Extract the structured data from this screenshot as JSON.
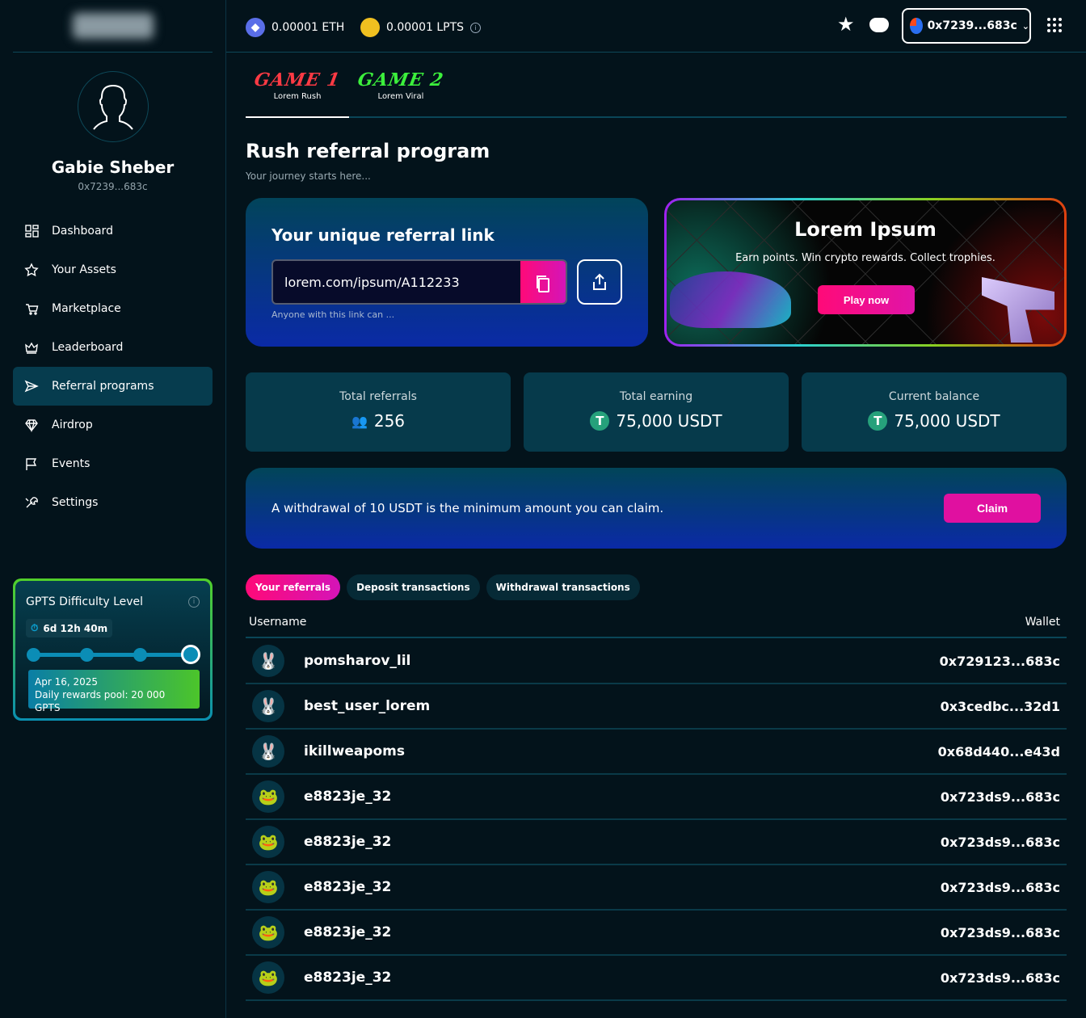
{
  "sidebar": {
    "user": {
      "name": "Gabie Sheber",
      "address": "0x7239...683c"
    },
    "items": [
      {
        "label": "Dashboard",
        "icon": "dashboard-icon"
      },
      {
        "label": "Your Assets",
        "icon": "star-icon"
      },
      {
        "label": "Marketplace",
        "icon": "cart-icon"
      },
      {
        "label": "Leaderboard",
        "icon": "crown-icon"
      },
      {
        "label": "Referral programs",
        "icon": "send-icon",
        "active": true
      },
      {
        "label": "Airdrop",
        "icon": "diamond-icon"
      },
      {
        "label": "Events",
        "icon": "flag-icon"
      },
      {
        "label": "Settings",
        "icon": "tools-icon"
      }
    ],
    "gpts": {
      "title": "GPTS Difficulty Level",
      "timer": "6d 12h 40m",
      "level": 4,
      "levels": 4,
      "date": "Apr 16, 2025",
      "pool": "Daily rewards pool: 20 000 GPTS"
    }
  },
  "topbar": {
    "eth": "0.00001 ETH",
    "lpts": "0.00001 LPTS",
    "wallet": "0x7239...683c"
  },
  "tabs": [
    {
      "title": "GAME 1",
      "subtitle": "Lorem Rush",
      "color": "#ff3a44"
    },
    {
      "title": "GAME 2",
      "subtitle": "Lorem Viral",
      "color": "#3cf03c"
    }
  ],
  "page": {
    "title": "Rush referral program",
    "subtitle": "Your journey starts here..."
  },
  "referral": {
    "title": "Your unique referral link",
    "link": "lorem.com/ipsum/A112233",
    "note": "Anyone with this link can ..."
  },
  "promo": {
    "title": "Lorem Ipsum",
    "desc": "Earn points. Win crypto rewards. Collect trophies.",
    "button": "Play now"
  },
  "stats": [
    {
      "label": "Total referrals",
      "value": "256"
    },
    {
      "label": "Total earning",
      "value": "75,000 USDT"
    },
    {
      "label": "Current balance",
      "value": "75,000 USDT"
    }
  ],
  "claim": {
    "message": "A withdrawal of 10 USDT is the minimum amount you can claim.",
    "button": "Claim"
  },
  "subtabs": [
    "Your referrals",
    "Deposit transactions",
    "Withdrawal transactions"
  ],
  "table": {
    "columns": [
      "Username",
      "Wallet"
    ],
    "rows": [
      {
        "avatar": "🐰",
        "username": "pomsharov_lil",
        "wallet": "0x729123...683c"
      },
      {
        "avatar": "🐰",
        "username": "best_user_lorem",
        "wallet": "0x3cedbc...32d1"
      },
      {
        "avatar": "🐰",
        "username": "ikillweapoms",
        "wallet": "0x68d440...e43d"
      },
      {
        "avatar": "🐸",
        "username": "e8823je_32",
        "wallet": "0x723ds9...683c"
      },
      {
        "avatar": "🐸",
        "username": "e8823je_32",
        "wallet": "0x723ds9...683c"
      },
      {
        "avatar": "🐸",
        "username": "e8823je_32",
        "wallet": "0x723ds9...683c"
      },
      {
        "avatar": "🐸",
        "username": "e8823je_32",
        "wallet": "0x723ds9...683c"
      },
      {
        "avatar": "🐸",
        "username": "e8823je_32",
        "wallet": "0x723ds9...683c"
      }
    ]
  }
}
